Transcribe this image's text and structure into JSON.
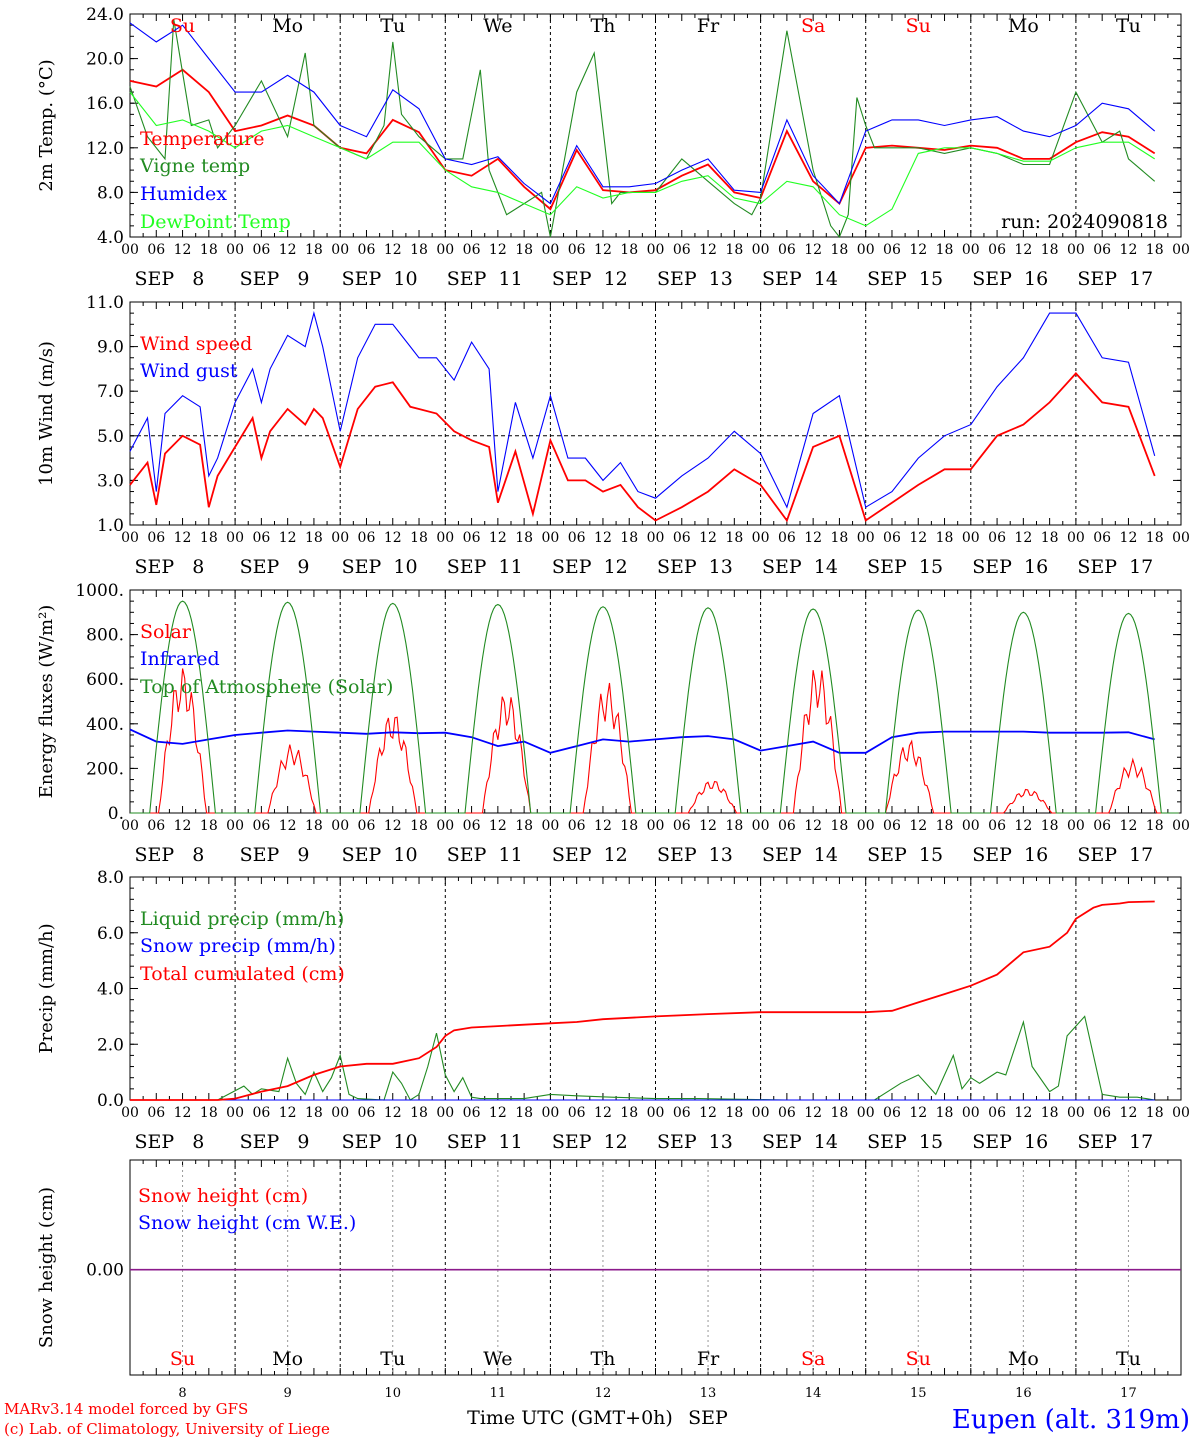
{
  "run_label": "run: 2024090818",
  "xlabel": "Time UTC (GMT+0h)",
  "month_label": "SEP",
  "credit_line1": "MARv3.14 model forced by GFS",
  "credit_line2": "(c) Lab. of Climatology, University of Liege",
  "station": "Eupen (alt. 319m)",
  "day_names": [
    "Su",
    "Mo",
    "Tu",
    "We",
    "Th",
    "Fr",
    "Sa",
    "Su",
    "Mo",
    "Tu"
  ],
  "day_name_colors": [
    "#ff0000",
    "#000000",
    "#000000",
    "#000000",
    "#000000",
    "#000000",
    "#ff0000",
    "#ff0000",
    "#000000",
    "#000000"
  ],
  "date_labels": [
    "SEP   8",
    "SEP   9",
    "SEP  10",
    "SEP  11",
    "SEP  12",
    "SEP  13",
    "SEP  14",
    "SEP  15",
    "SEP  16",
    "SEP  17"
  ],
  "day_numbers": [
    "8",
    "9",
    "10",
    "11",
    "12",
    "13",
    "14",
    "15",
    "16",
    "17"
  ],
  "hour_ticks": [
    "00",
    "06",
    "12",
    "18"
  ],
  "colors": {
    "red": "#ff0000",
    "green": "#228b22",
    "blue": "#0000ff",
    "lightgreen": "#22ff22",
    "purple": "#8b1a8b"
  },
  "chart_data": [
    {
      "type": "line",
      "ylabel": "2m Temp. (°C)",
      "ylim": [
        4.0,
        24.0
      ],
      "yticks": [
        "4.0",
        "8.0",
        "12.0",
        "16.0",
        "20.0",
        "24.0"
      ],
      "x_unit": "hours since Sep 8 00 UTC",
      "series": [
        {
          "name": "Temperature",
          "color": "#ff0000",
          "x": [
            0,
            6,
            12,
            18,
            24,
            30,
            36,
            42,
            48,
            54,
            60,
            66,
            72,
            78,
            84,
            90,
            96,
            102,
            108,
            114,
            120,
            126,
            132,
            138,
            144,
            150,
            156,
            162,
            168,
            174,
            180,
            186,
            192,
            198,
            204,
            210,
            216,
            222,
            228,
            234
          ],
          "y": [
            18.0,
            17.5,
            19.0,
            17.0,
            13.5,
            14.0,
            14.9,
            14.0,
            12.0,
            11.5,
            14.5,
            13.4,
            10.0,
            9.5,
            11.0,
            8.5,
            6.5,
            11.8,
            8.2,
            8.0,
            8.2,
            9.5,
            10.5,
            8.0,
            7.5,
            13.5,
            9.0,
            7.0,
            12.0,
            12.2,
            12.0,
            11.8,
            12.2,
            12.0,
            11.0,
            11.0,
            12.5,
            13.4,
            13.0,
            11.5
          ]
        },
        {
          "name": "Vigne temp",
          "color": "#228b22",
          "x": [
            0,
            4,
            8,
            10,
            14,
            18,
            20,
            24,
            30,
            36,
            40,
            42,
            48,
            54,
            58,
            60,
            62,
            66,
            72,
            76,
            80,
            82,
            86,
            90,
            94,
            96,
            102,
            106,
            110,
            112,
            116,
            120,
            126,
            132,
            138,
            142,
            144,
            150,
            156,
            160,
            162,
            164,
            166,
            168,
            170,
            174,
            180,
            186,
            192,
            198,
            204,
            210,
            216,
            222,
            226,
            228,
            234
          ],
          "y": [
            17.5,
            13.0,
            11.0,
            23.5,
            14.0,
            14.5,
            12.0,
            14.0,
            18.0,
            13.0,
            20.5,
            14.0,
            12.0,
            11.0,
            14.0,
            21.5,
            15.0,
            13.0,
            11.0,
            11.0,
            19.0,
            10.0,
            6.0,
            7.0,
            8.0,
            4.0,
            17.0,
            20.5,
            7.0,
            8.0,
            8.0,
            8.0,
            11.0,
            9.0,
            7.0,
            6.0,
            7.5,
            22.5,
            10.0,
            5.0,
            4.0,
            6.0,
            16.5,
            14.0,
            12.0,
            12.0,
            12.0,
            11.5,
            12.0,
            11.5,
            10.5,
            10.5,
            17.0,
            12.5,
            13.5,
            11.0,
            9.0
          ]
        },
        {
          "name": "Humidex",
          "color": "#0000ff",
          "x": [
            0,
            6,
            12,
            18,
            24,
            30,
            36,
            42,
            48,
            54,
            60,
            66,
            72,
            78,
            84,
            90,
            96,
            102,
            108,
            114,
            120,
            126,
            132,
            138,
            144,
            150,
            156,
            162,
            168,
            174,
            180,
            186,
            192,
            198,
            204,
            210,
            216,
            222,
            228,
            234
          ],
          "y": [
            23.2,
            21.5,
            23.0,
            20.0,
            17.0,
            17.0,
            18.5,
            17.0,
            14.0,
            13.0,
            17.2,
            15.5,
            11.0,
            10.5,
            11.2,
            8.8,
            7.0,
            12.2,
            8.5,
            8.5,
            8.8,
            10.0,
            11.0,
            8.2,
            8.0,
            14.5,
            9.5,
            7.0,
            13.5,
            14.5,
            14.5,
            14.0,
            14.5,
            14.8,
            13.5,
            13.0,
            14.0,
            16.0,
            15.5,
            13.5
          ]
        },
        {
          "name": "DewPoint Temp",
          "color": "#22ff22",
          "x": [
            0,
            6,
            12,
            18,
            24,
            30,
            36,
            42,
            48,
            54,
            60,
            66,
            72,
            78,
            84,
            90,
            96,
            102,
            108,
            114,
            120,
            126,
            132,
            138,
            144,
            150,
            156,
            162,
            168,
            174,
            180,
            186,
            192,
            198,
            204,
            210,
            216,
            222,
            228,
            234
          ],
          "y": [
            17.0,
            14.0,
            14.5,
            13.5,
            12.0,
            13.5,
            14.0,
            13.0,
            12.0,
            11.0,
            12.5,
            12.5,
            10.0,
            8.5,
            8.0,
            7.0,
            6.0,
            8.5,
            7.5,
            8.0,
            8.0,
            9.0,
            9.5,
            7.5,
            7.0,
            9.0,
            8.5,
            6.0,
            5.0,
            6.5,
            11.5,
            12.0,
            12.0,
            11.5,
            10.8,
            10.8,
            12.0,
            12.5,
            12.5,
            11.0
          ]
        }
      ]
    },
    {
      "type": "line",
      "ylabel": "10m Wind (m/s)",
      "ylim": [
        1.0,
        11.0
      ],
      "yticks": [
        "1.0",
        "3.0",
        "5.0",
        "7.0",
        "9.0",
        "11.0"
      ],
      "reference_line": 5.0,
      "series": [
        {
          "name": "Wind speed",
          "color": "#ff0000",
          "x": [
            0,
            4,
            6,
            8,
            12,
            16,
            18,
            20,
            24,
            28,
            30,
            32,
            36,
            40,
            42,
            44,
            48,
            52,
            56,
            60,
            64,
            66,
            70,
            74,
            78,
            82,
            84,
            88,
            92,
            96,
            100,
            104,
            108,
            112,
            116,
            120,
            126,
            132,
            138,
            144,
            150,
            156,
            162,
            168,
            174,
            180,
            186,
            192,
            198,
            204,
            210,
            216,
            222,
            228,
            234
          ],
          "y": [
            2.8,
            3.8,
            1.9,
            4.2,
            5.0,
            4.6,
            1.8,
            3.2,
            4.5,
            5.8,
            4.0,
            5.2,
            6.2,
            5.5,
            6.2,
            5.8,
            3.6,
            6.2,
            7.2,
            7.4,
            6.3,
            6.2,
            6.0,
            5.2,
            4.8,
            4.5,
            2.0,
            4.3,
            1.5,
            4.8,
            3.0,
            3.0,
            2.5,
            2.8,
            1.8,
            1.2,
            1.8,
            2.5,
            3.5,
            2.8,
            1.2,
            4.5,
            5.0,
            1.2,
            2.0,
            2.8,
            3.5,
            3.5,
            5.0,
            5.5,
            6.5,
            7.8,
            6.5,
            6.3,
            3.2
          ]
        },
        {
          "name": "Wind gust",
          "color": "#0000ff",
          "x": [
            0,
            4,
            6,
            8,
            12,
            16,
            18,
            20,
            24,
            28,
            30,
            32,
            36,
            40,
            42,
            44,
            48,
            52,
            56,
            60,
            64,
            66,
            70,
            74,
            78,
            82,
            84,
            88,
            92,
            96,
            100,
            104,
            108,
            112,
            116,
            120,
            126,
            132,
            138,
            144,
            150,
            156,
            162,
            168,
            174,
            180,
            186,
            192,
            198,
            204,
            210,
            216,
            222,
            228,
            234
          ],
          "y": [
            4.3,
            5.8,
            2.5,
            6.0,
            6.8,
            6.3,
            3.2,
            4.0,
            6.5,
            8.0,
            6.5,
            8.0,
            9.5,
            9.0,
            10.5,
            9.0,
            5.2,
            8.5,
            10.0,
            10.0,
            9.0,
            8.5,
            8.5,
            7.5,
            9.2,
            8.0,
            2.5,
            6.5,
            4.0,
            6.8,
            4.0,
            4.0,
            3.0,
            3.8,
            2.5,
            2.2,
            3.2,
            4.0,
            5.2,
            4.2,
            1.8,
            6.0,
            6.8,
            1.8,
            2.5,
            4.0,
            5.0,
            5.5,
            7.2,
            8.5,
            10.5,
            10.5,
            8.5,
            8.3,
            4.1
          ]
        }
      ]
    },
    {
      "type": "line",
      "ylabel": "Energy fluxes (W/m²)",
      "ylim": [
        0,
        1000
      ],
      "yticks": [
        "0.",
        "200.",
        "400.",
        "600.",
        "800.",
        "1000."
      ],
      "series": [
        {
          "name": "Solar",
          "color": "#ff0000",
          "peaks": [
            660,
            310,
            460,
            550,
            590,
            150,
            670,
            330,
            110,
            240
          ],
          "x_per_day": [
            12,
            13,
            12,
            14,
            13,
            13,
            13,
            10,
            13,
            13
          ]
        },
        {
          "name": "Infrared",
          "color": "#0000ff",
          "x": [
            0,
            6,
            12,
            18,
            24,
            30,
            36,
            42,
            48,
            54,
            60,
            66,
            72,
            78,
            84,
            90,
            96,
            102,
            108,
            114,
            120,
            126,
            132,
            138,
            144,
            150,
            156,
            162,
            168,
            174,
            180,
            186,
            192,
            198,
            204,
            210,
            216,
            222,
            228,
            234
          ],
          "y": [
            375,
            320,
            310,
            330,
            350,
            360,
            370,
            365,
            360,
            355,
            362,
            358,
            360,
            340,
            300,
            320,
            270,
            300,
            330,
            320,
            330,
            340,
            345,
            330,
            280,
            300,
            320,
            270,
            270,
            340,
            360,
            365,
            365,
            365,
            365,
            360,
            360,
            360,
            362,
            330
          ]
        },
        {
          "name": "Top of Atmosphere (Solar)",
          "color": "#228b22",
          "peaks": [
            950,
            945,
            940,
            935,
            925,
            920,
            915,
            910,
            900,
            895
          ]
        }
      ]
    },
    {
      "type": "line",
      "ylabel": "Precip (mm/h)",
      "ylim": [
        0,
        8.0
      ],
      "yticks": [
        "0.0",
        "2.0",
        "4.0",
        "6.0",
        "8.0"
      ],
      "series": [
        {
          "name": "Liquid precip (mm/h)",
          "color": "#228b22",
          "x": [
            0,
            20,
            26,
            28,
            30,
            34,
            36,
            38,
            40,
            42,
            44,
            46,
            48,
            50,
            52,
            58,
            60,
            62,
            64,
            66,
            68,
            70,
            72,
            74,
            76,
            78,
            80,
            90,
            96,
            102,
            110,
            120,
            130,
            150,
            170,
            176,
            180,
            184,
            188,
            190,
            192,
            194,
            198,
            200,
            204,
            206,
            210,
            212,
            214,
            218,
            222,
            226,
            228,
            230,
            232,
            234
          ],
          "y": [
            0,
            0,
            0.5,
            0.2,
            0.4,
            0.3,
            1.5,
            0.6,
            0.2,
            1.0,
            0.3,
            0.8,
            1.6,
            0.2,
            0.05,
            0,
            1.0,
            0.6,
            0,
            0.2,
            1.2,
            2.4,
            0.9,
            0.3,
            0.8,
            0.1,
            0.05,
            0.05,
            0.2,
            0.15,
            0.1,
            0.05,
            0.05,
            0,
            0,
            0.6,
            0.9,
            0.2,
            1.6,
            0.4,
            0.8,
            0.6,
            1.0,
            0.9,
            2.8,
            1.2,
            0.3,
            0.5,
            2.3,
            3.0,
            0.2,
            0.1,
            0.1,
            0.1,
            0.05,
            0
          ]
        },
        {
          "name": "Snow precip (mm/h)",
          "color": "#0000ff",
          "x": [
            0,
            234
          ],
          "y": [
            0,
            0
          ]
        },
        {
          "name": "Total cumulated (cm)",
          "color": "#ff0000",
          "x": [
            0,
            20,
            24,
            30,
            36,
            42,
            48,
            54,
            60,
            66,
            70,
            72,
            74,
            78,
            84,
            90,
            96,
            102,
            108,
            114,
            120,
            132,
            144,
            156,
            168,
            174,
            180,
            186,
            192,
            198,
            204,
            210,
            214,
            216,
            220,
            222,
            226,
            228,
            234
          ],
          "y": [
            0,
            0,
            0.05,
            0.3,
            0.5,
            0.9,
            1.2,
            1.3,
            1.3,
            1.5,
            1.9,
            2.3,
            2.5,
            2.6,
            2.65,
            2.7,
            2.75,
            2.8,
            2.9,
            2.95,
            3.0,
            3.08,
            3.15,
            3.15,
            3.15,
            3.2,
            3.5,
            3.8,
            4.1,
            4.5,
            5.3,
            5.5,
            6.0,
            6.5,
            6.9,
            7.0,
            7.05,
            7.1,
            7.12
          ]
        }
      ]
    },
    {
      "type": "line",
      "ylabel": "Snow height (cm)",
      "yticks": [
        "0.00"
      ],
      "series": [
        {
          "name": "Snow height (cm)",
          "color": "#ff0000",
          "x": [
            0,
            234
          ],
          "y": [
            0,
            0
          ]
        },
        {
          "name": "Snow height (cm W.E.)",
          "color": "#0000ff",
          "x": [
            0,
            234
          ],
          "y": [
            0,
            0
          ]
        }
      ]
    }
  ]
}
